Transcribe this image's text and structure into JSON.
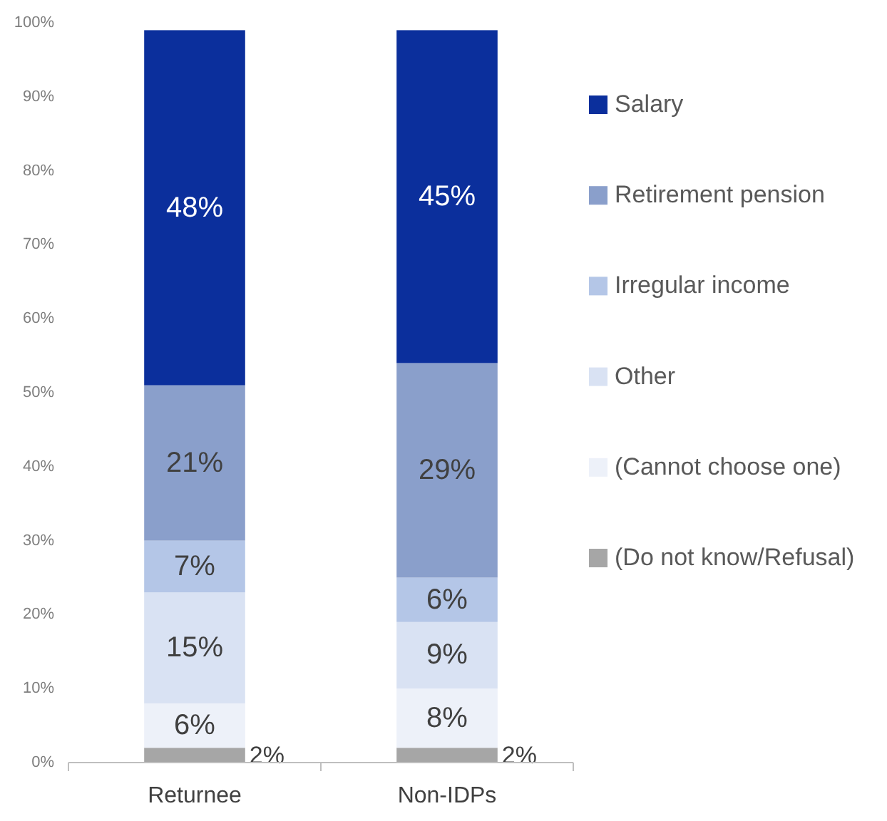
{
  "chart_data": {
    "type": "bar",
    "stacked": true,
    "categories": [
      "Returnee",
      "Non-IDPs"
    ],
    "series": [
      {
        "name": "(Do not know/Refusal)",
        "color": "#a6a6a6",
        "values": [
          2,
          2
        ],
        "value_labels": [
          "2%",
          "2%"
        ]
      },
      {
        "name": "(Cannot choose one)",
        "color": "#edf1f9",
        "values": [
          6,
          8
        ],
        "value_labels": [
          "6%",
          "8%"
        ]
      },
      {
        "name": "Other",
        "color": "#d9e2f3",
        "values": [
          15,
          9
        ],
        "value_labels": [
          "15%",
          "9%"
        ]
      },
      {
        "name": "Irregular income",
        "color": "#b4c6e7",
        "values": [
          7,
          6
        ],
        "value_labels": [
          "7%",
          "6%"
        ]
      },
      {
        "name": "Retirement pension",
        "color": "#8a9fcb",
        "values": [
          21,
          29
        ],
        "value_labels": [
          "21%",
          "29%"
        ]
      },
      {
        "name": "Salary",
        "color": "#0b2f9c",
        "values": [
          48,
          45
        ],
        "value_labels": [
          "48%",
          "45%"
        ]
      }
    ],
    "ylim": [
      0,
      100
    ],
    "yticks": [
      {
        "value": 0,
        "label": "0%"
      },
      {
        "value": 10,
        "label": "10%"
      },
      {
        "value": 20,
        "label": "20%"
      },
      {
        "value": 30,
        "label": "30%"
      },
      {
        "value": 40,
        "label": "40%"
      },
      {
        "value": 50,
        "label": "50%"
      },
      {
        "value": 60,
        "label": "60%"
      },
      {
        "value": 70,
        "label": "70%"
      },
      {
        "value": 80,
        "label": "80%"
      },
      {
        "value": 90,
        "label": "90%"
      },
      {
        "value": 100,
        "label": "100%"
      }
    ],
    "legend": "right",
    "grid": false
  }
}
